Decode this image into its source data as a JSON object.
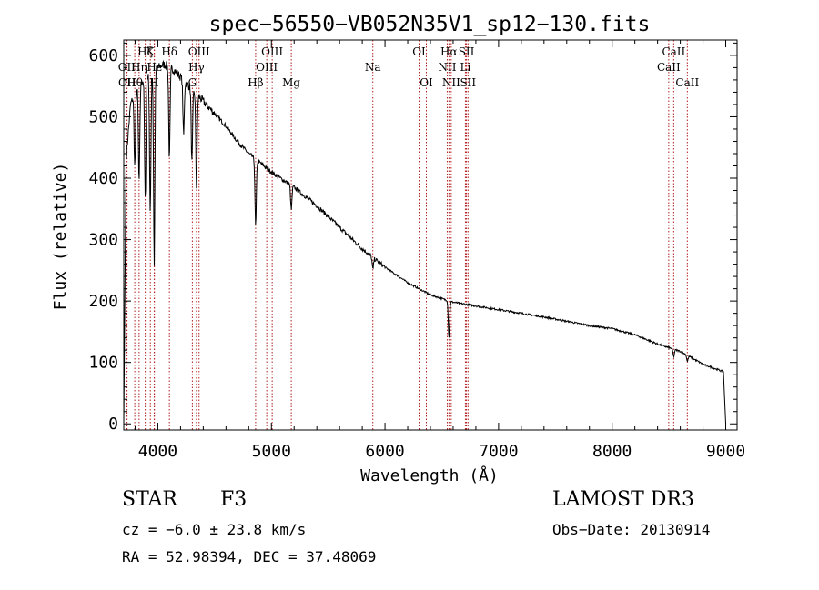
{
  "chart_data": {
    "type": "line",
    "title": "spec−56550−VB052N35V1_sp12−130.fits",
    "xlabel": "Wavelength (Å)",
    "ylabel": "Flux (relative)",
    "xlim": [
      3700,
      9100
    ],
    "ylim": [
      -10,
      625
    ],
    "xticks": [
      4000,
      5000,
      6000,
      7000,
      8000,
      9000
    ],
    "yticks": [
      0,
      100,
      200,
      300,
      400,
      500,
      600
    ],
    "grid": false,
    "legend": "none",
    "continuum": {
      "x": [
        3700,
        3720,
        3760,
        3800,
        3850,
        3900,
        3950,
        4000,
        4050,
        4100,
        4150,
        4200,
        4250,
        4300,
        4350,
        4400,
        4450,
        4500,
        4600,
        4700,
        4800,
        4900,
        5000,
        5200,
        5400,
        5600,
        5800,
        6000,
        6200,
        6400,
        6600,
        6800,
        7000,
        7400,
        7800,
        8000,
        8200,
        8400,
        8600,
        8800,
        8980,
        9000
      ],
      "y": [
        0,
        430,
        520,
        540,
        555,
        565,
        575,
        580,
        585,
        582,
        575,
        565,
        555,
        545,
        535,
        525,
        515,
        505,
        485,
        460,
        440,
        425,
        410,
        385,
        355,
        320,
        285,
        255,
        230,
        210,
        198,
        192,
        186,
        174,
        160,
        155,
        145,
        130,
        118,
        97,
        85,
        0
      ]
    },
    "absorption_features": [
      {
        "x": 3797,
        "depth": 120
      },
      {
        "x": 3835,
        "depth": 160
      },
      {
        "x": 3889,
        "depth": 200
      },
      {
        "x": 3933,
        "depth": 230
      },
      {
        "x": 3968,
        "depth": 320
      },
      {
        "x": 4102,
        "depth": 150
      },
      {
        "x": 4227,
        "depth": 90
      },
      {
        "x": 4300,
        "depth": 120
      },
      {
        "x": 4340,
        "depth": 150
      },
      {
        "x": 4861,
        "depth": 110
      },
      {
        "x": 5175,
        "depth": 40
      },
      {
        "x": 5893,
        "depth": 20
      },
      {
        "x": 6563,
        "depth": 60
      },
      {
        "x": 8542,
        "depth": 12
      },
      {
        "x": 8662,
        "depth": 10
      }
    ],
    "reference_lines": [
      {
        "label": "Hζ",
        "x": 3889,
        "row": 1
      },
      {
        "label": "K",
        "x": 3934,
        "row": 1
      },
      {
        "label": "Hδ",
        "x": 4102,
        "row": 1
      },
      {
        "label": "OIII",
        "x": 4363,
        "row": 1
      },
      {
        "label": "OIII",
        "x": 5007,
        "row": 1
      },
      {
        "label": "OI",
        "x": 6300,
        "row": 1
      },
      {
        "label": "Hα",
        "x": 6563,
        "row": 1
      },
      {
        "label": "SII",
        "x": 6717,
        "row": 1
      },
      {
        "label": "CaII",
        "x": 8542,
        "row": 1
      },
      {
        "label": "OII",
        "x": 3727,
        "row": 2
      },
      {
        "label": "Hη",
        "x": 3835,
        "row": 2
      },
      {
        "label": "Hε",
        "x": 3970,
        "row": 2
      },
      {
        "label": "Hγ",
        "x": 4340,
        "row": 2
      },
      {
        "label": "OIII",
        "x": 4959,
        "row": 2
      },
      {
        "label": "Na",
        "x": 5893,
        "row": 2
      },
      {
        "label": "NII",
        "x": 6548,
        "row": 2
      },
      {
        "label": "Li",
        "x": 6708,
        "row": 2
      },
      {
        "label": "CaII",
        "x": 8498,
        "row": 2
      },
      {
        "label": "OII",
        "x": 3729,
        "row": 3
      },
      {
        "label": "Hθ",
        "x": 3797,
        "row": 3
      },
      {
        "label": "H",
        "x": 3968,
        "row": 3
      },
      {
        "label": "G",
        "x": 4304,
        "row": 3
      },
      {
        "label": "Hβ",
        "x": 4861,
        "row": 3
      },
      {
        "label": "Mg",
        "x": 5175,
        "row": 3
      },
      {
        "label": "OI",
        "x": 6364,
        "row": 3
      },
      {
        "label": "NII",
        "x": 6583,
        "row": 3
      },
      {
        "label": "SII",
        "x": 6731,
        "row": 3
      },
      {
        "label": "CaII",
        "x": 8662,
        "row": 3
      }
    ],
    "colors": {
      "spectrum": "#000000",
      "reference_line": "#b22222",
      "axes": "#000000"
    }
  },
  "info": {
    "object_class": "STAR",
    "subclass": "F3",
    "survey": "LAMOST DR3",
    "redshift": "cz = −6.0 ± 23.8 km/s",
    "obs_date": "Obs−Date: 20130914",
    "coords": "RA =  52.98394, DEC =  37.48069"
  }
}
